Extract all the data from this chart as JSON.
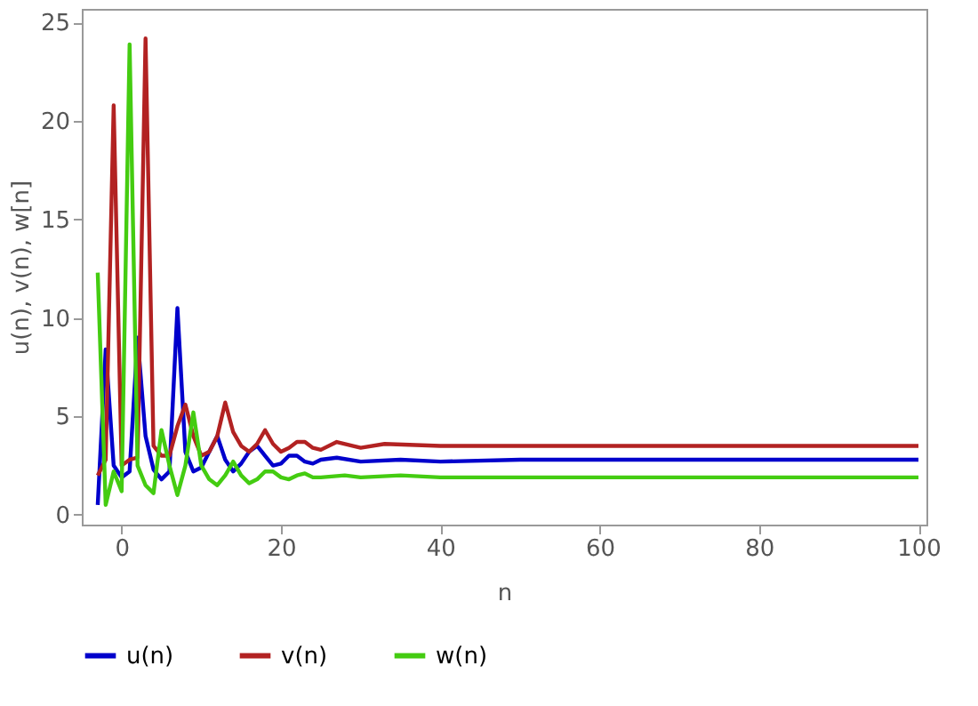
{
  "chart_data": {
    "type": "line",
    "xlabel": "n",
    "ylabel": "u(n), v(n), w[n]",
    "xlim": [
      -5,
      101
    ],
    "ylim": [
      -0.5,
      25.7
    ],
    "xticks": [
      0,
      20,
      40,
      60,
      80,
      100
    ],
    "yticks": [
      0,
      5,
      10,
      15,
      20,
      25
    ],
    "grid": false,
    "legend": "bottom",
    "marker": "none",
    "line_style": "solid",
    "series": [
      {
        "name": "u(n)",
        "color": "#0000cc",
        "x": [
          -3,
          -2,
          -1,
          0,
          1,
          2,
          3,
          4,
          5,
          6,
          7,
          8,
          9,
          10,
          11,
          12,
          13,
          14,
          15,
          16,
          17,
          18,
          19,
          20,
          21,
          22,
          23,
          24,
          25,
          27,
          30,
          35,
          40,
          50,
          100
        ],
        "values": [
          0.5,
          8.4,
          2.5,
          1.9,
          2.2,
          9.0,
          4.0,
          2.3,
          1.8,
          2.2,
          10.5,
          3.2,
          2.2,
          2.4,
          3.2,
          4.0,
          2.8,
          2.2,
          2.6,
          3.2,
          3.5,
          3.0,
          2.5,
          2.6,
          3.0,
          3.0,
          2.7,
          2.6,
          2.8,
          2.9,
          2.7,
          2.8,
          2.7,
          2.8,
          2.8
        ]
      },
      {
        "name": "v(n)",
        "color": "#b22222",
        "x": [
          -3,
          -2,
          -1,
          0,
          1,
          2,
          3,
          4,
          5,
          6,
          7,
          8,
          9,
          10,
          11,
          12,
          13,
          14,
          15,
          16,
          17,
          18,
          19,
          20,
          21,
          22,
          23,
          24,
          25,
          27,
          30,
          33,
          40,
          50,
          100
        ],
        "values": [
          2.0,
          2.8,
          20.8,
          2.5,
          2.8,
          2.9,
          24.2,
          3.5,
          3.0,
          3.0,
          4.5,
          5.6,
          4.0,
          3.0,
          3.2,
          4.0,
          5.7,
          4.2,
          3.5,
          3.2,
          3.6,
          4.3,
          3.6,
          3.2,
          3.4,
          3.7,
          3.7,
          3.4,
          3.3,
          3.7,
          3.4,
          3.6,
          3.5,
          3.5,
          3.5
        ]
      },
      {
        "name": "w(n)",
        "color": "#44cc11",
        "x": [
          -3,
          -2,
          -1,
          0,
          1,
          2,
          3,
          4,
          5,
          6,
          7,
          8,
          9,
          10,
          11,
          12,
          13,
          14,
          15,
          16,
          17,
          18,
          19,
          20,
          21,
          22,
          23,
          24,
          25,
          28,
          30,
          35,
          40,
          100
        ],
        "values": [
          12.3,
          0.5,
          2.2,
          1.2,
          23.9,
          2.5,
          1.5,
          1.1,
          4.3,
          2.5,
          1.0,
          2.5,
          5.2,
          2.5,
          1.8,
          1.5,
          2.0,
          2.7,
          2.0,
          1.6,
          1.8,
          2.2,
          2.2,
          1.9,
          1.8,
          2.0,
          2.1,
          1.9,
          1.9,
          2.0,
          1.9,
          2.0,
          1.9,
          1.9
        ]
      }
    ]
  }
}
